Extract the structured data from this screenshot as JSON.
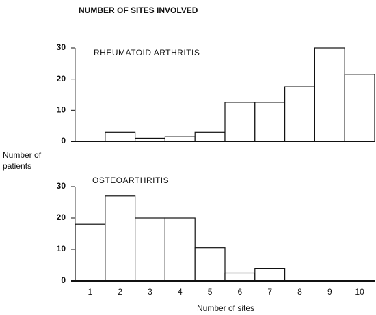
{
  "title": "NUMBER OF SITES INVOLVED",
  "y_label": "Number of patients",
  "x_label": "Number of sites",
  "chart_data": [
    {
      "type": "bar",
      "title": "RHEUMATOID ARTHRITIS",
      "values": [
        0,
        3,
        1,
        1.5,
        3,
        12.5,
        12.5,
        17.5,
        30,
        21.5
      ],
      "color": "#ffffff",
      "ylim": [
        0,
        30
      ],
      "yticks": [
        0,
        10,
        20,
        30
      ]
    },
    {
      "type": "bar",
      "title": "OSTEOARTHRITIS",
      "categories": [
        "1",
        "2",
        "3",
        "4",
        "5",
        "6",
        "7",
        "8",
        "9",
        "10"
      ],
      "values": [
        18,
        27,
        20,
        20,
        10.5,
        2.5,
        4,
        0,
        0,
        0
      ],
      "color": "#ffffff",
      "ylim": [
        0,
        30
      ],
      "yticks": [
        0,
        10,
        20,
        30
      ]
    }
  ]
}
